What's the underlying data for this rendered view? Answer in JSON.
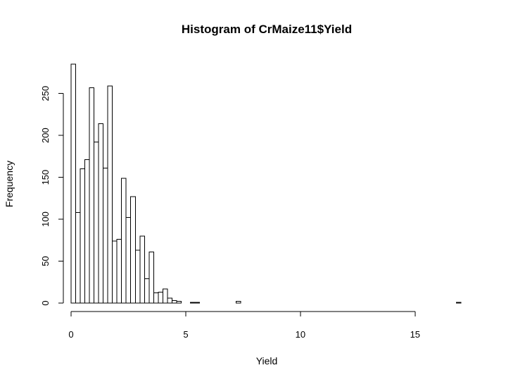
{
  "chart_data": {
    "type": "bar",
    "title": "Histogram of CrMaize11$Yield",
    "xlabel": "Yield",
    "ylabel": "Frequency",
    "bin_width": 0.2,
    "xlim": [
      0,
      17
    ],
    "ylim": [
      0,
      285
    ],
    "x_ticks": [
      0,
      5,
      10,
      15
    ],
    "y_ticks": [
      0,
      50,
      100,
      150,
      200,
      250
    ],
    "bins": [
      {
        "x0": 0.0,
        "x1": 0.2,
        "value": 285
      },
      {
        "x0": 0.2,
        "x1": 0.4,
        "value": 108
      },
      {
        "x0": 0.4,
        "x1": 0.6,
        "value": 160
      },
      {
        "x0": 0.6,
        "x1": 0.8,
        "value": 171
      },
      {
        "x0": 0.8,
        "x1": 1.0,
        "value": 257
      },
      {
        "x0": 1.0,
        "x1": 1.2,
        "value": 192
      },
      {
        "x0": 1.2,
        "x1": 1.4,
        "value": 214
      },
      {
        "x0": 1.4,
        "x1": 1.6,
        "value": 161
      },
      {
        "x0": 1.6,
        "x1": 1.8,
        "value": 259
      },
      {
        "x0": 1.8,
        "x1": 2.0,
        "value": 74
      },
      {
        "x0": 2.0,
        "x1": 2.2,
        "value": 76
      },
      {
        "x0": 2.2,
        "x1": 2.4,
        "value": 149
      },
      {
        "x0": 2.4,
        "x1": 2.6,
        "value": 102
      },
      {
        "x0": 2.6,
        "x1": 2.8,
        "value": 127
      },
      {
        "x0": 2.8,
        "x1": 3.0,
        "value": 63
      },
      {
        "x0": 3.0,
        "x1": 3.2,
        "value": 80
      },
      {
        "x0": 3.2,
        "x1": 3.4,
        "value": 29
      },
      {
        "x0": 3.4,
        "x1": 3.6,
        "value": 61
      },
      {
        "x0": 3.6,
        "x1": 3.8,
        "value": 12
      },
      {
        "x0": 3.8,
        "x1": 4.0,
        "value": 13
      },
      {
        "x0": 4.0,
        "x1": 4.2,
        "value": 17
      },
      {
        "x0": 4.2,
        "x1": 4.4,
        "value": 6
      },
      {
        "x0": 4.4,
        "x1": 4.6,
        "value": 3
      },
      {
        "x0": 4.6,
        "x1": 4.8,
        "value": 2
      },
      {
        "x0": 4.8,
        "x1": 5.0,
        "value": 0
      },
      {
        "x0": 5.0,
        "x1": 5.2,
        "value": 0
      },
      {
        "x0": 5.2,
        "x1": 5.4,
        "value": 1
      },
      {
        "x0": 5.4,
        "x1": 5.6,
        "value": 1
      },
      {
        "x0": 5.6,
        "x1": 5.8,
        "value": 0
      },
      {
        "x0": 7.2,
        "x1": 7.4,
        "value": 2
      },
      {
        "x0": 16.8,
        "x1": 17.0,
        "value": 1
      }
    ]
  }
}
